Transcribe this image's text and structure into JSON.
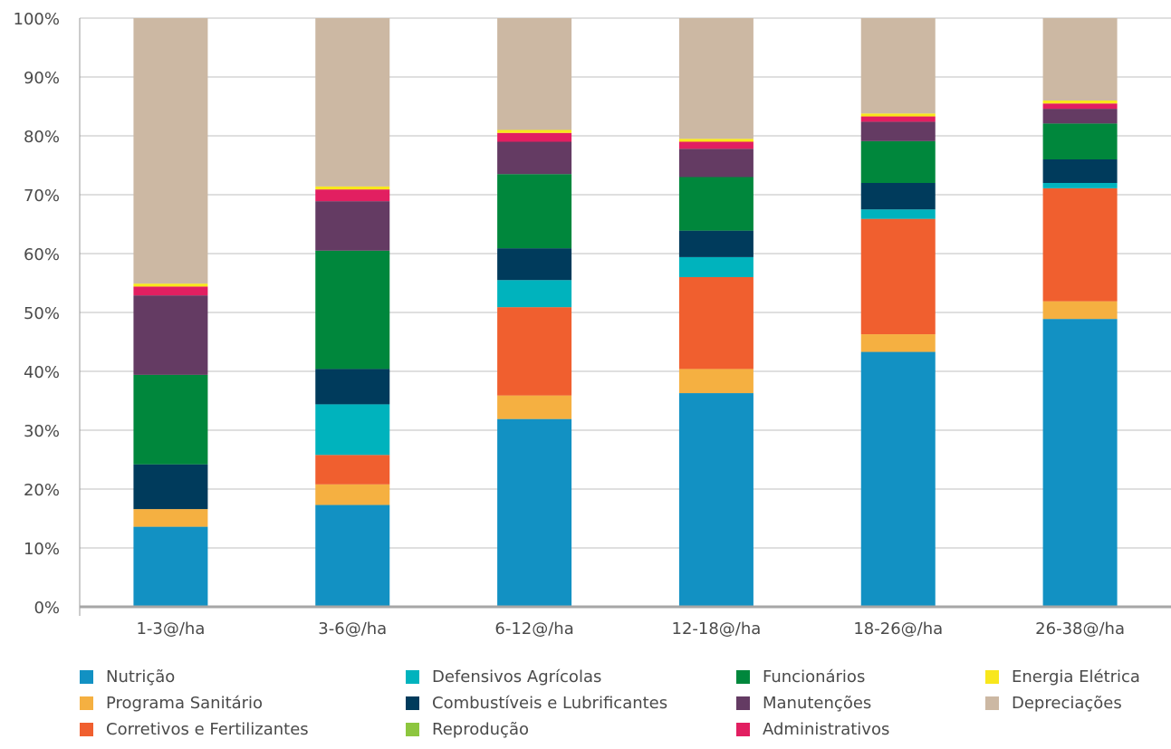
{
  "chart_data": {
    "type": "bar",
    "stacked": true,
    "percent": true,
    "title": "",
    "xlabel": "",
    "ylabel": "",
    "ylim": [
      0,
      100
    ],
    "yticks": [
      "0%",
      "10%",
      "20%",
      "30%",
      "40%",
      "50%",
      "60%",
      "70%",
      "80%",
      "90%",
      "100%"
    ],
    "grid": true,
    "legend_position": "bottom",
    "categories": [
      "1-3@/ha",
      "3-6@/ha",
      "6-12@/ha",
      "12-18@/ha",
      "18-26@/ha",
      "26-38@/ha"
    ],
    "series": [
      {
        "name": "Nutrição",
        "color": "#1291c3",
        "values": [
          13.6,
          17.3,
          31.9,
          36.3,
          43.3,
          48.9
        ]
      },
      {
        "name": "Programa Sanitário",
        "color": "#f5b041",
        "values": [
          3.0,
          3.5,
          4.0,
          4.1,
          3.0,
          3.0
        ]
      },
      {
        "name": "Corretivos e Fertilizantes",
        "color": "#f05f2f",
        "values": [
          0.0,
          5.0,
          15.0,
          15.6,
          19.6,
          19.2
        ]
      },
      {
        "name": "Defensivos Agrícolas",
        "color": "#00b3bd",
        "values": [
          0.0,
          8.6,
          4.6,
          3.4,
          1.6,
          0.9
        ]
      },
      {
        "name": "Combustíveis e Lubrificantes",
        "color": "#003b5c",
        "values": [
          7.6,
          6.0,
          5.4,
          4.5,
          4.5,
          4.0
        ]
      },
      {
        "name": "Reprodução",
        "color": "#8dc63f",
        "values": [
          0,
          0,
          0,
          0,
          0,
          0
        ]
      },
      {
        "name": "Funcionários",
        "color": "#00873c",
        "values": [
          15.2,
          20.1,
          12.6,
          9.1,
          7.1,
          6.1
        ]
      },
      {
        "name": "Manutenções",
        "color": "#643b63",
        "values": [
          13.5,
          8.4,
          5.5,
          4.8,
          3.3,
          2.5
        ]
      },
      {
        "name": "Administrativos",
        "color": "#e21f61",
        "values": [
          1.5,
          2.0,
          1.5,
          1.2,
          0.9,
          0.9
        ]
      },
      {
        "name": "Energia Elétrica",
        "color": "#f8e71c",
        "values": [
          0.5,
          0.5,
          0.5,
          0.5,
          0.5,
          0.5
        ]
      },
      {
        "name": "Depreciações",
        "color": "#ccb8a3",
        "values": [
          45.1,
          28.6,
          19.0,
          20.5,
          16.2,
          14.0
        ]
      }
    ],
    "legend_columns": [
      [
        "Nutrição",
        "Programa Sanitário",
        "Corretivos e Fertilizantes"
      ],
      [
        "Defensivos Agrícolas",
        "Combustíveis e Lubrificantes",
        "Reprodução"
      ],
      [
        "Funcionários",
        "Manutenções",
        "Administrativos"
      ],
      [
        "Energia Elétrica",
        "Depreciações"
      ]
    ]
  }
}
